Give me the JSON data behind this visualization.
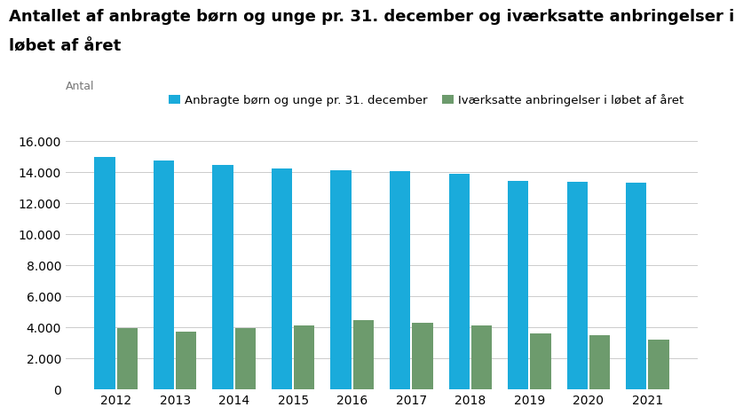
{
  "title_line1": "Antallet af anbragte børn og unge pr. 31. december og iværksatte anbringelser i",
  "title_line2": "løbet af året",
  "ylabel": "Antal",
  "years": [
    2012,
    2013,
    2014,
    2015,
    2016,
    2017,
    2018,
    2019,
    2020,
    2021
  ],
  "blue_values": [
    14950,
    14750,
    14450,
    14250,
    14100,
    14050,
    13900,
    13450,
    13400,
    13300
  ],
  "green_values": [
    3950,
    3700,
    3950,
    4100,
    4450,
    4300,
    4100,
    3600,
    3500,
    3200
  ],
  "blue_color": "#1aabdb",
  "green_color": "#6d9b6d",
  "blue_label": "Anbragte børn og unge pr. 31. december",
  "green_label": "Iværksatte anbringelser i løbet af året",
  "ylim": [
    0,
    16000
  ],
  "yticks": [
    0,
    2000,
    4000,
    6000,
    8000,
    10000,
    12000,
    14000,
    16000
  ],
  "background_color": "#ffffff",
  "grid_color": "#cccccc",
  "title_fontsize": 13,
  "axis_label_fontsize": 9,
  "tick_fontsize": 10,
  "legend_fontsize": 9.5
}
